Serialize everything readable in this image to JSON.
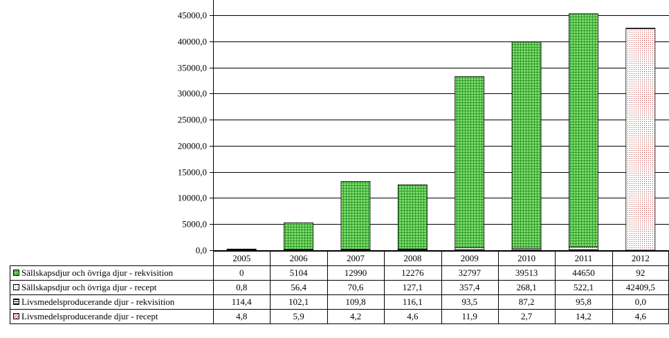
{
  "colors": {
    "green_fill": "#7fdc6a",
    "green_line": "#2e9a2e",
    "red_fill": "#ffffff",
    "red_line": "#c03030",
    "grid": "#000000"
  },
  "chart_data": {
    "type": "bar",
    "stacked": true,
    "categories": [
      "2005",
      "2006",
      "2007",
      "2008",
      "2009",
      "2010",
      "2011",
      "2012"
    ],
    "series": [
      {
        "name": "Sällskapsdjur och övriga djur - rekvisition",
        "values": [
          0,
          5104,
          12990,
          12276,
          32797,
          39513,
          44650,
          92
        ],
        "labels": [
          "0",
          "5104",
          "12990",
          "12276",
          "32797",
          "39513",
          "44650",
          "92"
        ],
        "pattern": "green-grid"
      },
      {
        "name": "Sällskapsdjur och övriga djur - recept",
        "values": [
          0.8,
          56.4,
          70.6,
          127.1,
          357.4,
          268.1,
          522.1,
          42409.5
        ],
        "labels": [
          "0,8",
          "56,4",
          "70,6",
          "127,1",
          "357,4",
          "268,1",
          "522,1",
          "42409,5"
        ],
        "pattern": "red-dots"
      },
      {
        "name": "Livsmedelsproducerande djur - rekvisition",
        "values": [
          114.4,
          102.1,
          109.8,
          116.1,
          93.5,
          87.2,
          95.8,
          0.0
        ],
        "labels": [
          "114,4",
          "102,1",
          "109,8",
          "116,1",
          "93,5",
          "87,2",
          "95,8",
          "0,0"
        ],
        "pattern": "hlines"
      },
      {
        "name": "Livsmedelsproducerande djur - recept",
        "values": [
          4.8,
          5.9,
          4.2,
          4.6,
          11.9,
          2.7,
          14.2,
          4.6
        ],
        "labels": [
          "4,8",
          "5,9",
          "4,2",
          "4,6",
          "11,9",
          "2,7",
          "14,2",
          "4,6"
        ],
        "pattern": "red-diag"
      }
    ],
    "stack_order": [
      3,
      2,
      1,
      0
    ],
    "legend_order": [
      0,
      1,
      2,
      3
    ],
    "ylim": [
      0,
      45000
    ],
    "yticks": [
      0,
      5000,
      10000,
      15000,
      20000,
      25000,
      30000,
      35000,
      40000,
      45000
    ],
    "ytick_labels": [
      "0,0",
      "5000,0",
      "10000,0",
      "15000,0",
      "20000,0",
      "25000,0",
      "30000,0",
      "35000,0",
      "40000,0",
      "45000,0"
    ],
    "grid": true,
    "legend": "data-table-below"
  }
}
